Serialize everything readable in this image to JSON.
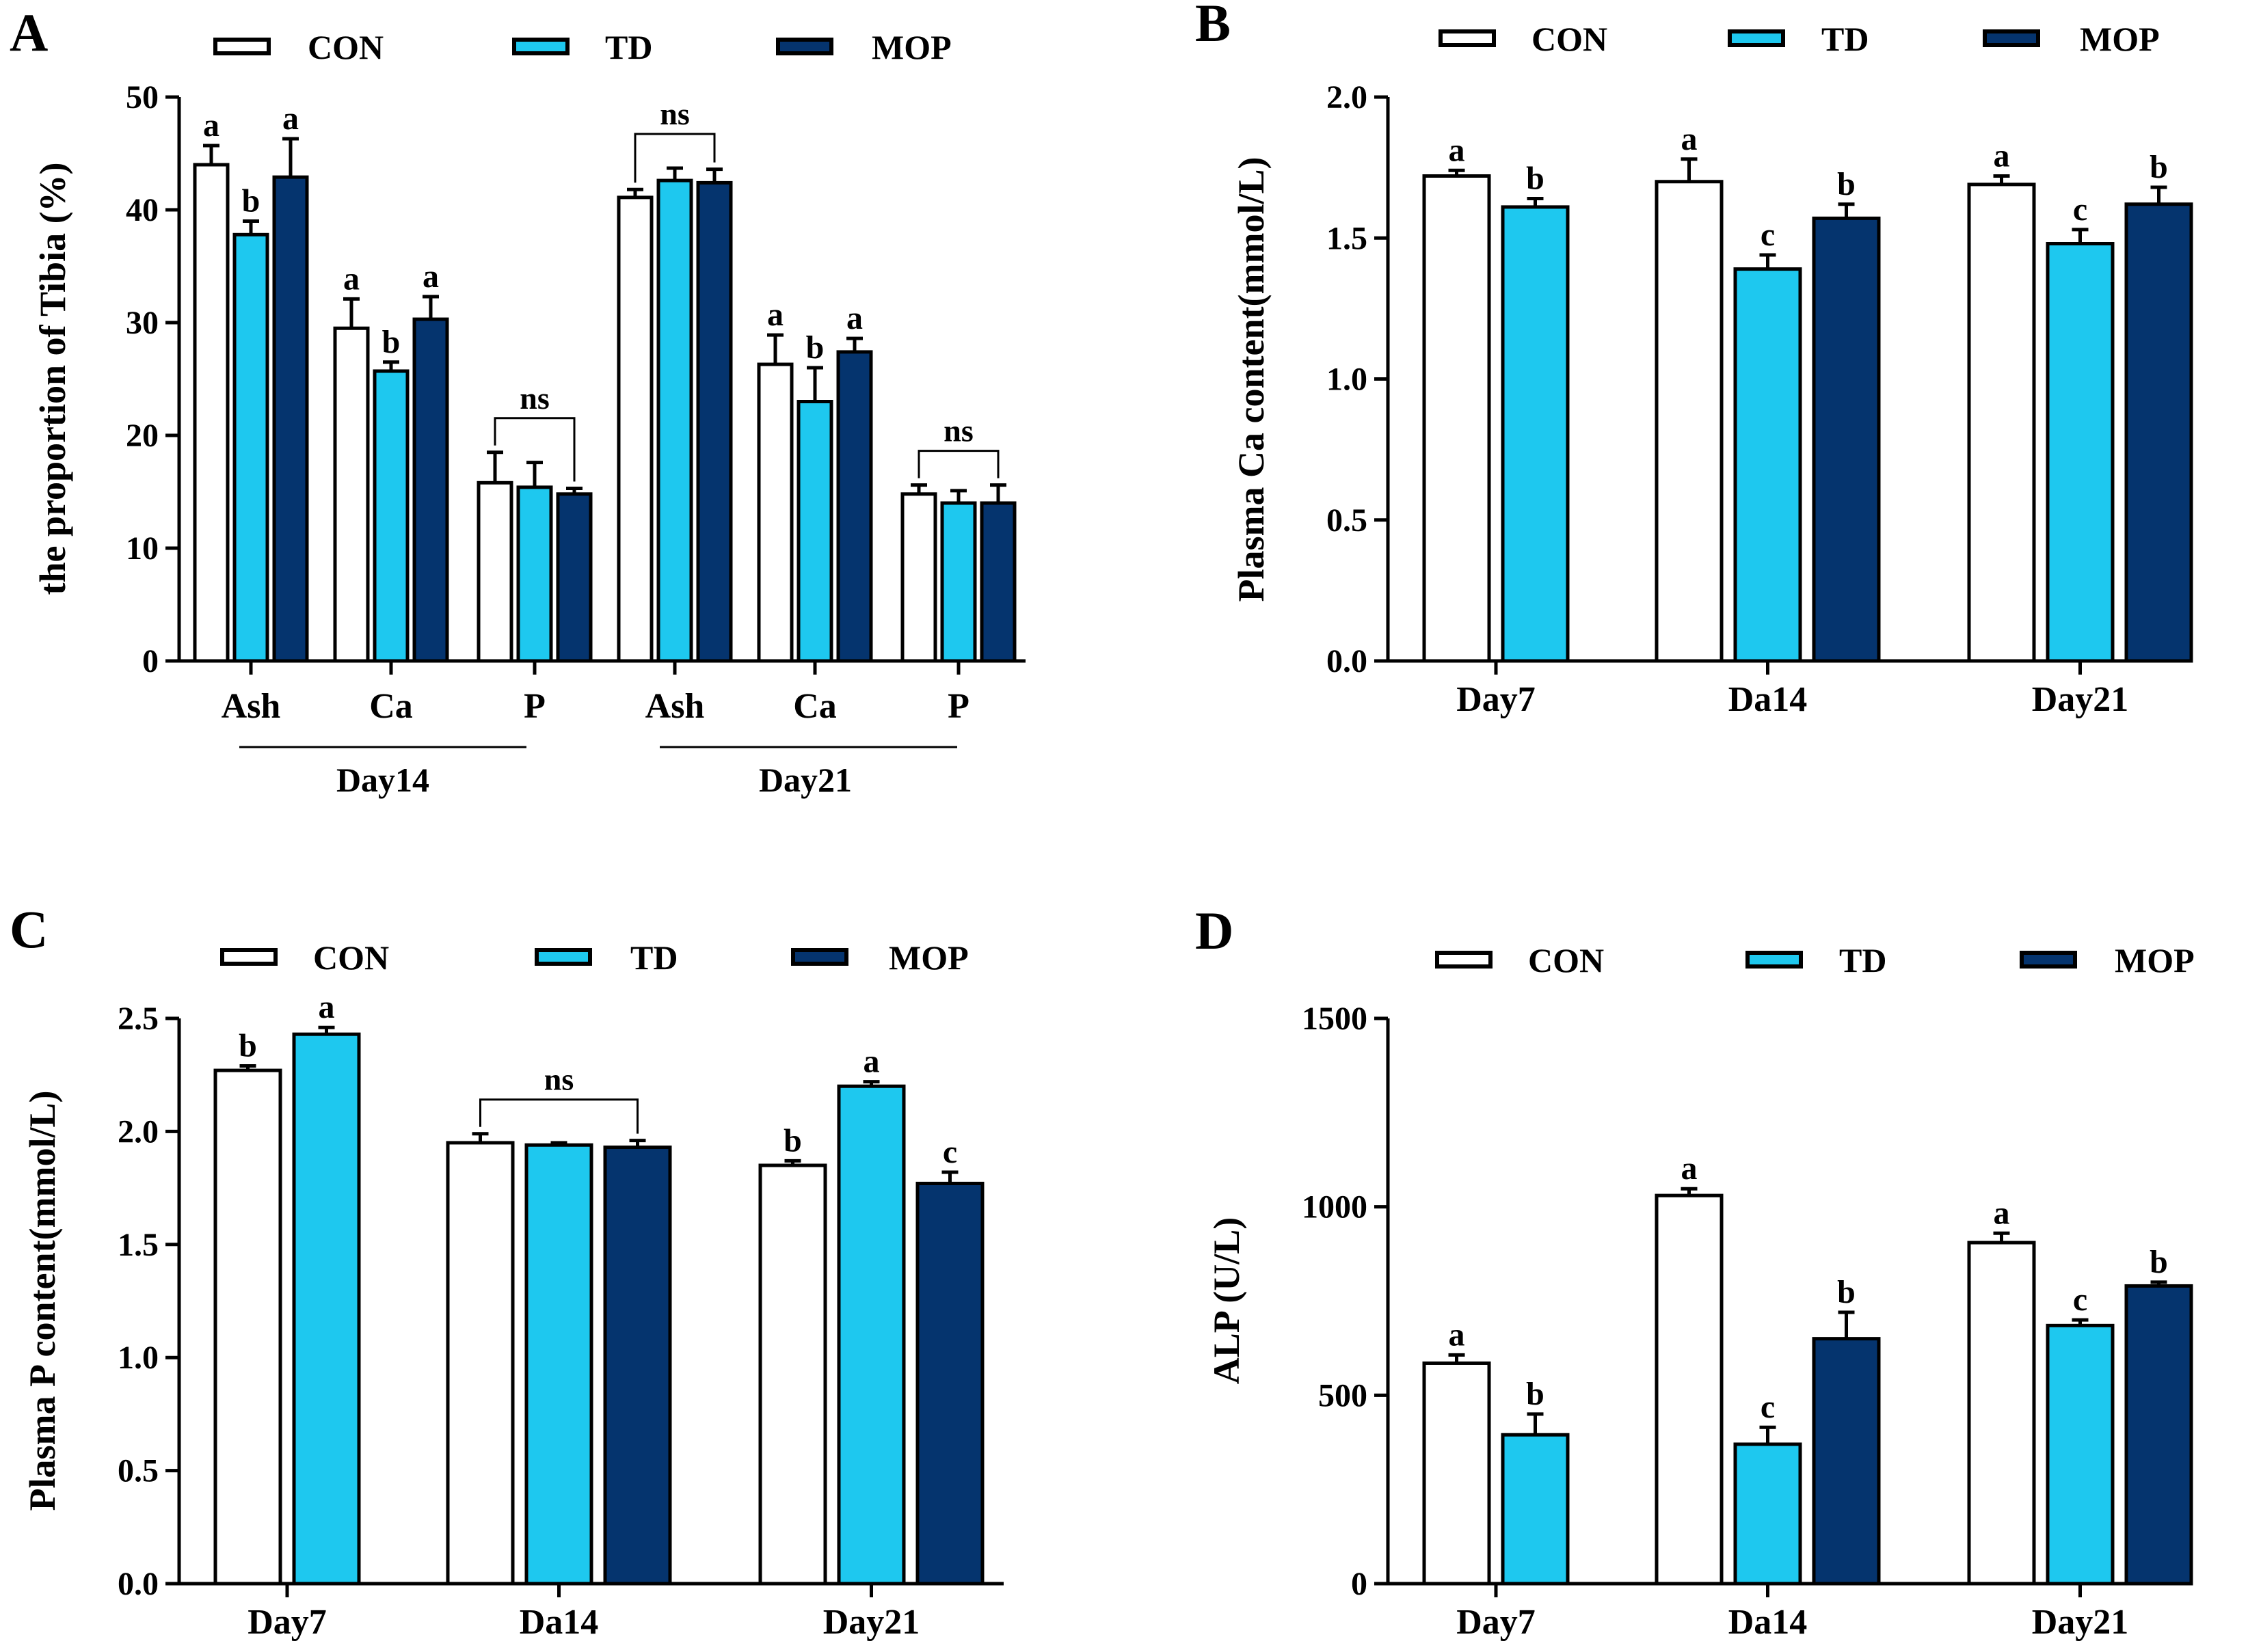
{
  "colors": {
    "CON": "#ffffff",
    "TD": "#1ec8ef",
    "MOP": "#05346e",
    "stroke": "#000000"
  },
  "chart_data": [
    {
      "panel": "A",
      "type": "bar",
      "ylabel": "the proportion of Tibia (%)",
      "ylim": [
        0,
        50
      ],
      "yticks": [
        "0",
        "10",
        "20",
        "30",
        "40",
        "50"
      ],
      "legend": [
        "CON",
        "TD",
        "MOP"
      ],
      "categories": [
        "Ash",
        "Ca",
        "P",
        "Ash",
        "Ca",
        "P"
      ],
      "group_labels": [
        "Day14",
        "Day21"
      ],
      "series": [
        {
          "name": "CON",
          "values": [
            44.0,
            29.5,
            15.8,
            41.1,
            26.3,
            14.8
          ],
          "errors": [
            1.7,
            2.6,
            2.7,
            0.7,
            2.6,
            0.8
          ]
        },
        {
          "name": "TD",
          "values": [
            37.8,
            25.7,
            15.4,
            42.6,
            23.0,
            14.0
          ],
          "errors": [
            1.2,
            0.8,
            2.2,
            1.1,
            3.0,
            1.1
          ]
        },
        {
          "name": "MOP",
          "values": [
            42.9,
            30.3,
            14.8,
            42.4,
            27.4,
            14.0
          ],
          "errors": [
            3.4,
            2.0,
            0.5,
            1.2,
            1.2,
            1.6
          ]
        }
      ],
      "letters": [
        [
          "a",
          "a",
          "",
          "",
          "a",
          ""
        ],
        [
          "b",
          "b",
          "",
          "",
          "b",
          ""
        ],
        [
          "a",
          "a",
          "",
          "",
          "a",
          ""
        ]
      ],
      "ns_brackets": [
        {
          "category_index": 2,
          "label": "ns"
        },
        {
          "category_index": 3,
          "label": "ns"
        },
        {
          "category_index": 5,
          "label": "ns"
        }
      ]
    },
    {
      "panel": "B",
      "type": "bar",
      "ylabel": "Plasma Ca content(mmol/L)",
      "ylim": [
        0,
        2.0
      ],
      "yticks": [
        "0.0",
        "0.5",
        "1.0",
        "1.5",
        "2.0"
      ],
      "legend": [
        "CON",
        "TD",
        "MOP"
      ],
      "categories": [
        "Day7",
        "Da14",
        "Day21"
      ],
      "series": [
        {
          "name": "CON",
          "values": [
            1.72,
            1.7,
            1.69
          ],
          "errors": [
            0.02,
            0.08,
            0.03
          ]
        },
        {
          "name": "TD",
          "values": [
            1.61,
            1.39,
            1.48
          ],
          "errors": [
            0.03,
            0.05,
            0.05
          ]
        },
        {
          "name": "MOP",
          "values": [
            null,
            1.57,
            1.62
          ],
          "errors": [
            null,
            0.05,
            0.06
          ]
        }
      ],
      "letters": [
        [
          "a",
          "a",
          "a"
        ],
        [
          "b",
          "c",
          "c"
        ],
        [
          "",
          "b",
          "b"
        ]
      ],
      "ns_brackets": []
    },
    {
      "panel": "C",
      "type": "bar",
      "ylabel": "Plasma P content(mmol/L)",
      "ylim": [
        0,
        2.5
      ],
      "yticks": [
        "0.0",
        "0.5",
        "1.0",
        "1.5",
        "2.0",
        "2.5"
      ],
      "legend": [
        "CON",
        "TD",
        "MOP"
      ],
      "categories": [
        "Day7",
        "Da14",
        "Day21"
      ],
      "series": [
        {
          "name": "CON",
          "values": [
            2.27,
            1.95,
            1.85
          ],
          "errors": [
            0.02,
            0.04,
            0.02
          ]
        },
        {
          "name": "TD",
          "values": [
            2.43,
            1.94,
            2.2
          ],
          "errors": [
            0.03,
            0.01,
            0.02
          ]
        },
        {
          "name": "MOP",
          "values": [
            null,
            1.93,
            1.77
          ],
          "errors": [
            null,
            0.03,
            0.05
          ]
        }
      ],
      "letters": [
        [
          "b",
          "",
          "b"
        ],
        [
          "a",
          "",
          "a"
        ],
        [
          "",
          "",
          "c"
        ]
      ],
      "ns_brackets": [
        {
          "category_index": 1,
          "label": "ns"
        }
      ]
    },
    {
      "panel": "D",
      "type": "bar",
      "ylabel": "ALP (U/L)",
      "ylim": [
        0,
        1500
      ],
      "yticks": [
        "0",
        "500",
        "1000",
        "1500"
      ],
      "legend": [
        "CON",
        "TD",
        "MOP"
      ],
      "categories": [
        "Day7",
        "Da14",
        "Day21"
      ],
      "series": [
        {
          "name": "CON",
          "values": [
            585,
            1030,
            905
          ],
          "errors": [
            22,
            18,
            25
          ]
        },
        {
          "name": "TD",
          "values": [
            395,
            370,
            685
          ],
          "errors": [
            55,
            45,
            15
          ]
        },
        {
          "name": "MOP",
          "values": [
            null,
            650,
            790
          ],
          "errors": [
            null,
            70,
            10
          ]
        }
      ],
      "letters": [
        [
          "a",
          "a",
          "a"
        ],
        [
          "b",
          "c",
          "c"
        ],
        [
          "",
          "b",
          "b"
        ]
      ],
      "ns_brackets": []
    }
  ]
}
